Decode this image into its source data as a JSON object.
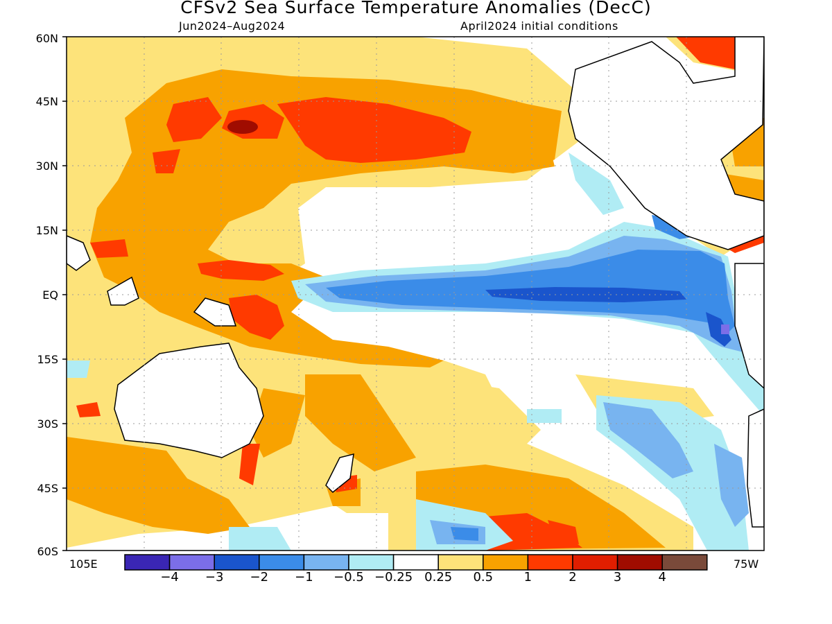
{
  "title": "CFSv2 Sea Surface Temperature Anomalies (DecC)",
  "subtitle_left": "Jun2024–Aug2024",
  "subtitle_right": "April2024 initial conditions",
  "lat_labels": [
    "60N",
    "45N",
    "30N",
    "15N",
    "EQ",
    "15S",
    "30S",
    "45S",
    "60S"
  ],
  "lon_left": "105E",
  "lon_right": "75W",
  "colorbar": {
    "colors": [
      "#3a26b4",
      "#7b6ee8",
      "#1a55cc",
      "#3b8ce8",
      "#78b4f0",
      "#b0ecf4",
      "#ffffff",
      "#fde37a",
      "#f8a200",
      "#ff3a00",
      "#e01e00",
      "#a00c00",
      "#7a4a3a"
    ],
    "labels": [
      "−4",
      "−3",
      "−2",
      "−1",
      "−0.5",
      "−0.25",
      "0.25",
      "0.5",
      "1",
      "2",
      "3",
      "4"
    ]
  }
}
